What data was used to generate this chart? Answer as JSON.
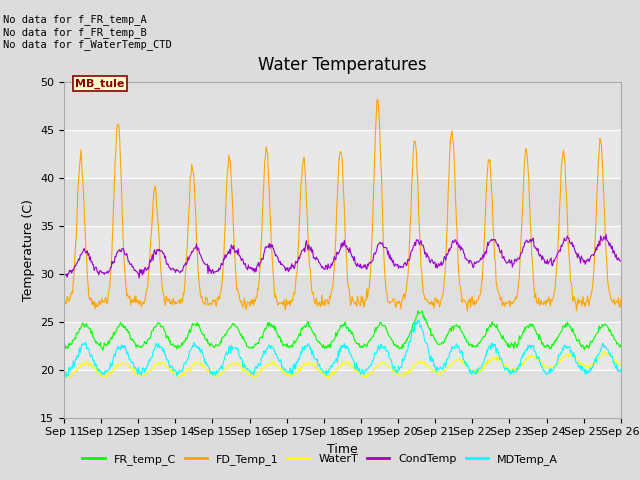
{
  "title": "Water Temperatures",
  "xlabel": "Time",
  "ylabel": "Temperature (C)",
  "ylim": [
    15,
    50
  ],
  "yticks": [
    15,
    20,
    25,
    30,
    35,
    40,
    45,
    50
  ],
  "xlim": [
    0,
    15
  ],
  "xtick_labels": [
    "Sep 11",
    "Sep 12",
    "Sep 13",
    "Sep 14",
    "Sep 15",
    "Sep 16",
    "Sep 17",
    "Sep 18",
    "Sep 19",
    "Sep 20",
    "Sep 21",
    "Sep 22",
    "Sep 23",
    "Sep 24",
    "Sep 25",
    "Sep 26"
  ],
  "legend_entries": [
    "FR_temp_C",
    "FD_Temp_1",
    "WaterT",
    "CondTemp",
    "MDTemp_A"
  ],
  "legend_colors": [
    "#00ff00",
    "#ffa500",
    "#ffff00",
    "#9900cc",
    "#00ffff"
  ],
  "annotation_text": "No data for f_FR_temp_A\nNo data for f_FR_temp_B\nNo data for f_WaterTemp_CTD",
  "annotation_box_text": "MB_tule",
  "background_color": "#dcdcdc",
  "plot_bg_color": "#e8e8e8",
  "alt_band_color": "#d0d0d0",
  "title_fontsize": 12,
  "axis_fontsize": 9,
  "tick_fontsize": 8
}
